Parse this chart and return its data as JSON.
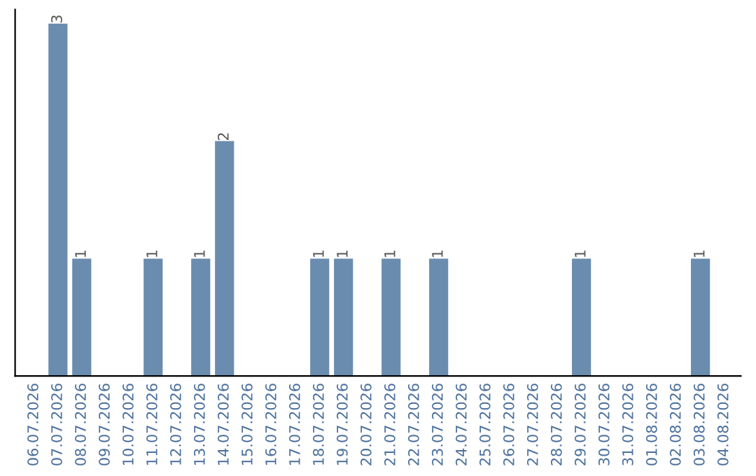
{
  "chart_data": {
    "type": "bar",
    "categories": [
      "06.07.2026",
      "07.07.2026",
      "08.07.2026",
      "09.07.2026",
      "10.07.2026",
      "11.07.2026",
      "12.07.2026",
      "13.07.2026",
      "14.07.2026",
      "15.07.2026",
      "16.07.2026",
      "17.07.2026",
      "18.07.2026",
      "19.07.2026",
      "20.07.2026",
      "21.07.2026",
      "22.07.2026",
      "23.07.2026",
      "24.07.2026",
      "25.07.2026",
      "26.07.2026",
      "27.07.2026",
      "28.07.2026",
      "29.07.2026",
      "30.07.2026",
      "31.07.2026",
      "01.08.2026",
      "02.08.2026",
      "03.08.2026",
      "04.08.2026"
    ],
    "values": [
      0,
      3,
      1,
      0,
      0,
      1,
      0,
      1,
      2,
      0,
      0,
      0,
      1,
      1,
      0,
      1,
      0,
      1,
      0,
      0,
      0,
      0,
      0,
      1,
      0,
      0,
      0,
      0,
      1,
      0
    ],
    "value_labels": [
      null,
      "3",
      "1",
      null,
      null,
      "1",
      null,
      "1",
      "2",
      null,
      null,
      null,
      "1",
      "1",
      null,
      "1",
      null,
      "1",
      null,
      null,
      null,
      null,
      null,
      "1",
      null,
      null,
      null,
      null,
      "1",
      null
    ],
    "color": "#6a8caf",
    "tick_labels": "x",
    "grid": false,
    "legend": false
  }
}
